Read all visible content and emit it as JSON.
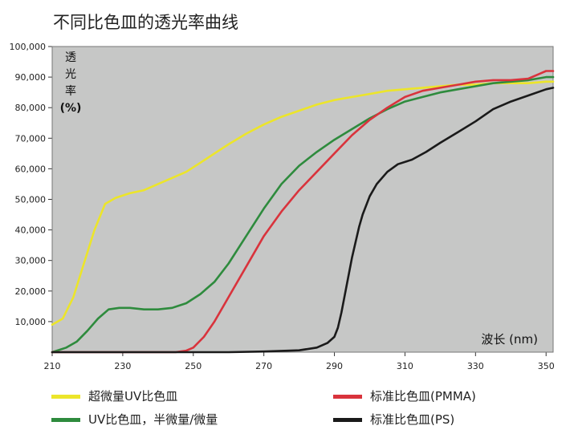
{
  "title": "不同比色皿的透光率曲线",
  "chart_data": {
    "type": "line",
    "title": "不同比色皿的透光率曲线",
    "xlabel": "波长 (nm)",
    "ylabel_lines": [
      "透",
      "光",
      "率",
      "(%)"
    ],
    "xlim": [
      210,
      352
    ],
    "ylim": [
      0,
      100000
    ],
    "x_ticks": [
      "210",
      "230",
      "250",
      "270",
      "290",
      "310",
      "330",
      "350"
    ],
    "y_ticks": [
      "10,000",
      "20,000",
      "30,000",
      "40,000",
      "50,000",
      "60,000",
      "70,000",
      "80,000",
      "90,000",
      "100,000"
    ],
    "grid": false,
    "legend_position": "bottom",
    "series": [
      {
        "name": "超微量UV比色皿",
        "color": "#ece52a",
        "x": [
          210,
          213,
          216,
          219,
          222,
          225,
          228,
          232,
          236,
          240,
          244,
          248,
          252,
          256,
          260,
          265,
          270,
          275,
          280,
          285,
          290,
          295,
          300,
          305,
          310,
          315,
          320,
          325,
          330,
          335,
          340,
          345,
          350,
          352
        ],
        "y": [
          9000,
          11000,
          18000,
          29000,
          40000,
          48500,
          50500,
          52000,
          53000,
          55000,
          57000,
          59000,
          62000,
          65000,
          68000,
          71500,
          74500,
          77000,
          79000,
          81000,
          82500,
          83500,
          84500,
          85500,
          86000,
          86500,
          87000,
          87500,
          87500,
          88000,
          88000,
          88000,
          88500,
          88500
        ]
      },
      {
        "name": "UV比色皿，半微量/微量",
        "color": "#2e8b3d",
        "x": [
          210,
          214,
          217,
          220,
          223,
          226,
          229,
          232,
          236,
          240,
          244,
          248,
          252,
          256,
          260,
          265,
          270,
          275,
          280,
          285,
          290,
          295,
          300,
          305,
          310,
          315,
          320,
          325,
          330,
          335,
          340,
          345,
          350,
          352
        ],
        "y": [
          0,
          1500,
          3500,
          7000,
          11000,
          14000,
          14500,
          14500,
          14000,
          14000,
          14500,
          16000,
          19000,
          23000,
          29000,
          38000,
          47000,
          55000,
          61000,
          65500,
          69500,
          73000,
          76500,
          79500,
          82000,
          83500,
          85000,
          86000,
          87000,
          88000,
          88500,
          89000,
          90000,
          90000
        ]
      },
      {
        "name": "标准比色皿(PMMA)",
        "color": "#d9333c",
        "x": [
          210,
          230,
          245,
          248,
          250,
          253,
          256,
          260,
          265,
          270,
          275,
          280,
          285,
          290,
          295,
          300,
          305,
          310,
          315,
          320,
          325,
          330,
          335,
          340,
          345,
          348,
          350,
          352
        ],
        "y": [
          0,
          0,
          0,
          500,
          1500,
          5000,
          10000,
          18000,
          28000,
          38000,
          46000,
          53000,
          59000,
          65000,
          71000,
          76000,
          80000,
          83500,
          85500,
          86500,
          87500,
          88500,
          89000,
          89000,
          89500,
          91000,
          92000,
          92000
        ]
      },
      {
        "name": "标准比色皿(PS)",
        "color": "#1a1a1a",
        "x": [
          210,
          240,
          260,
          270,
          280,
          285,
          288,
          290,
          291,
          292,
          293,
          294,
          295,
          296,
          297,
          298,
          300,
          302,
          305,
          308,
          312,
          316,
          320,
          325,
          330,
          335,
          340,
          345,
          350,
          352
        ],
        "y": [
          0,
          0,
          0,
          200,
          600,
          1500,
          3000,
          5000,
          8000,
          13000,
          19000,
          25000,
          31000,
          36000,
          41000,
          45000,
          51000,
          55000,
          59000,
          61500,
          63000,
          65500,
          68500,
          72000,
          75500,
          79500,
          82000,
          84000,
          86000,
          86500
        ]
      }
    ]
  }
}
